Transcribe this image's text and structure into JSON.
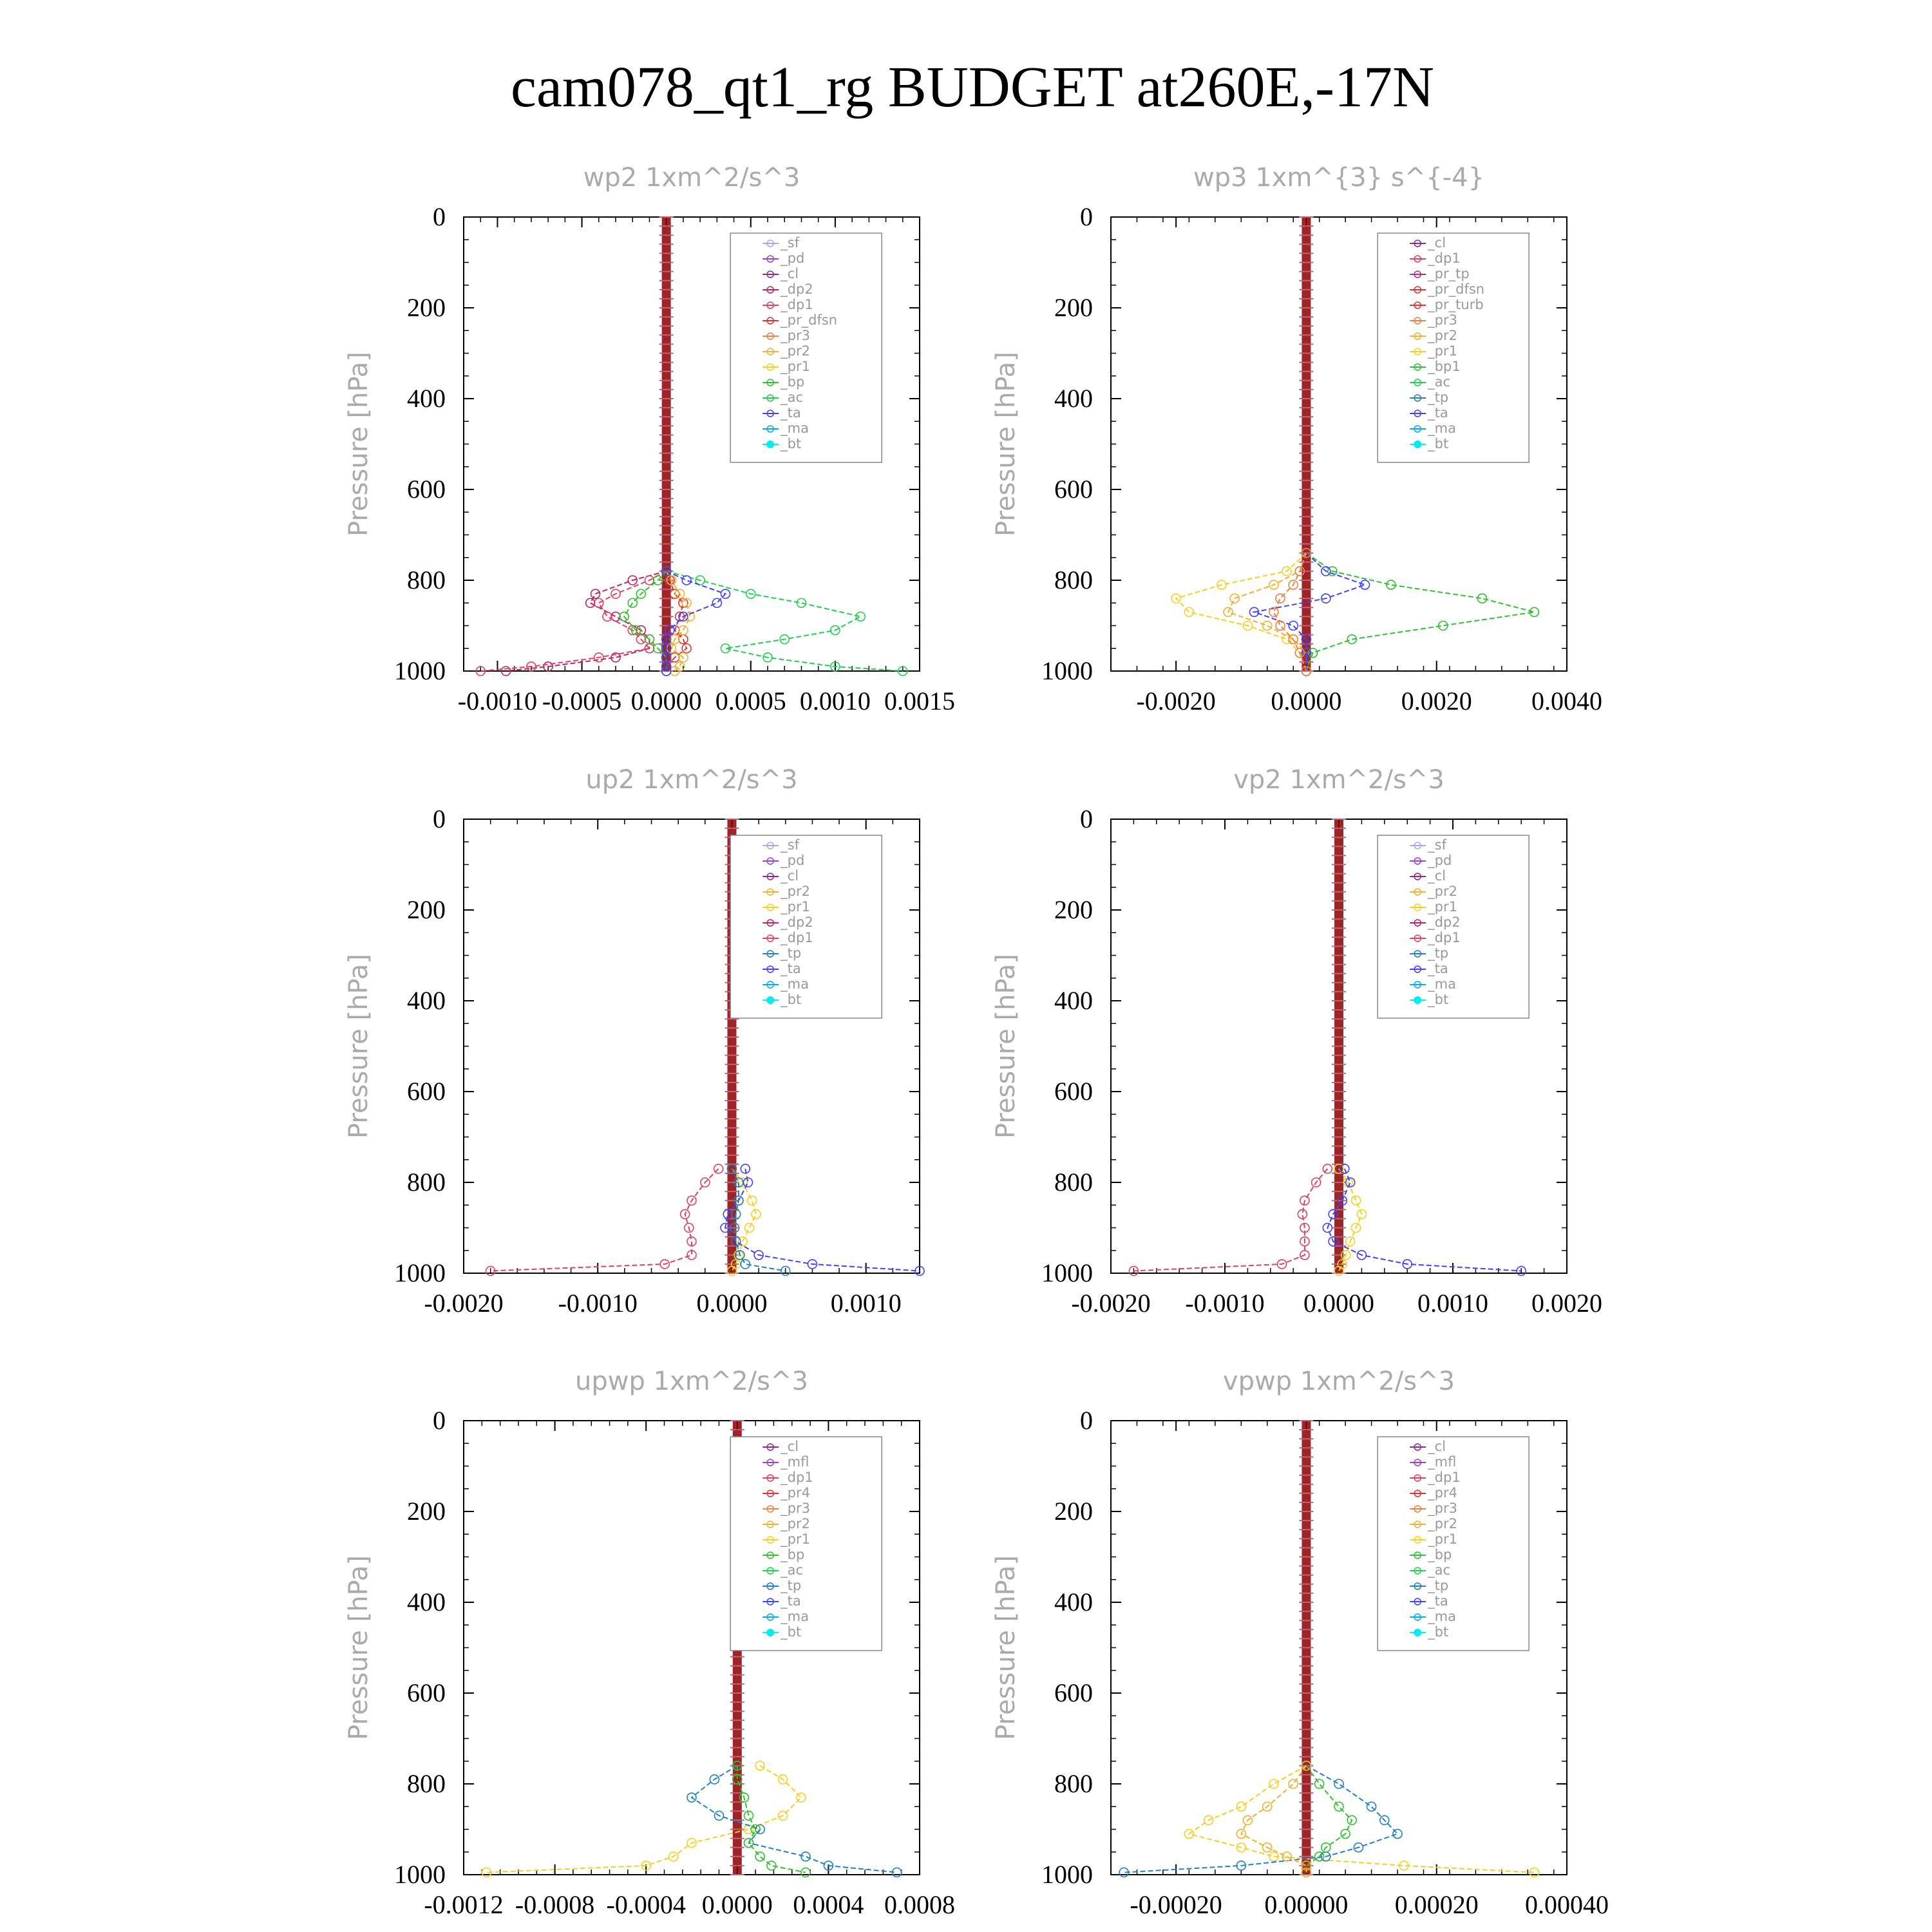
{
  "figure_title": "cam078_qt1_rg  BUDGET at260E,-17N",
  "colors": {
    "_sf": "#a8a8e8",
    "_pd": "#9b40d0",
    "_cl": "#8b2a8b",
    "_mfl": "#a040c0",
    "_dp2": "#c02060",
    "_dp1": "#e04060",
    "_pr_dfsn": "#e03030",
    "_pr_tp": "#b03080",
    "_pr_turb": "#e03030",
    "_pr4": "#e03030",
    "_pr3": "#f08040",
    "_pr2": "#f0b030",
    "_pr1": "#f5d020",
    "_bp1": "#30c030",
    "_bp": "#30c030",
    "_ac": "#20d050",
    "_tp": "#2080c0",
    "_ta": "#4040ff",
    "_ma": "#00aaee",
    "_bt": "#00eeee",
    "spine": "#8b0000"
  },
  "chart_data": [
    {
      "type": "line",
      "title": "wp2   1xm^2/s^3",
      "ylabel": "Pressure [hPa]",
      "ylim": [
        0,
        1000
      ],
      "xlim": [
        -0.0012,
        0.0015
      ],
      "xticks": [
        "-0.0010",
        "-0.0005",
        "0.0000",
        "0.0005",
        "0.0010",
        "0.0015"
      ],
      "yticks": [
        "0",
        "200",
        "400",
        "600",
        "800",
        "1000"
      ],
      "legend": [
        "_sf",
        "_pd",
        "_cl",
        "_dp2",
        "_dp1",
        "_pr_dfsn",
        "_pr3",
        "_pr2",
        "_pr1",
        "_bp",
        "_ac",
        "_ta",
        "_ma",
        "_bt"
      ],
      "pressure": [
        780,
        800,
        830,
        850,
        880,
        910,
        930,
        950,
        970,
        990,
        1000
      ],
      "series": [
        {
          "name": "_dp2",
          "values": [
            0,
            -0.0002,
            -0.00042,
            -0.00045,
            -0.0003,
            -0.00015,
            -0.0001,
            -0.0001,
            -0.0003,
            -0.0007,
            -0.00095
          ]
        },
        {
          "name": "_dp1",
          "values": [
            0,
            -0.0001,
            -0.0003,
            -0.0004,
            -0.00035,
            -0.0002,
            -0.00015,
            -0.0001,
            -0.0004,
            -0.0008,
            -0.0011
          ]
        },
        {
          "name": "_pr_dfsn",
          "values": [
            0,
            2e-05,
            5e-05,
            0.0001,
            8e-05,
            5e-05,
            0.0001,
            0.00012,
            5e-05,
            0,
            0
          ]
        },
        {
          "name": "_pr2",
          "values": [
            0,
            3e-05,
            8e-05,
            0.00012,
            0.00014,
            0.0001,
            5e-05,
            3e-05,
            0.0001,
            8e-05,
            5e-05
          ]
        },
        {
          "name": "_bp",
          "values": [
            0,
            -5e-05,
            -0.00015,
            -0.0002,
            -0.00025,
            -0.00018,
            -0.0001,
            -5e-05,
            0,
            0,
            0
          ]
        },
        {
          "name": "_ac",
          "values": [
            0,
            0.0002,
            0.0005,
            0.0008,
            0.00115,
            0.001,
            0.0007,
            0.00035,
            0.0006,
            0.001,
            0.0014
          ]
        },
        {
          "name": "_ta",
          "values": [
            0,
            0.00012,
            0.00035,
            0.0003,
            0.0001,
            2e-05,
            0,
            0,
            0,
            0,
            0
          ]
        }
      ]
    },
    {
      "type": "line",
      "title": "wp3   1xm^{3} s^{-4}",
      "ylabel": "Pressure [hPa]",
      "ylim": [
        0,
        1000
      ],
      "xlim": [
        -0.003,
        0.004
      ],
      "xticks": [
        "-0.0020",
        "0.0000",
        "0.0020",
        "0.0040"
      ],
      "yticks": [
        "0",
        "200",
        "400",
        "600",
        "800",
        "1000"
      ],
      "legend": [
        "_cl",
        "_dp1",
        "_pr_tp",
        "_pr_dfsn",
        "_pr_turb",
        "_pr3",
        "_pr2",
        "_pr1",
        "_bp1",
        "_ac",
        "_tp",
        "_ta",
        "_ma",
        "_bt"
      ],
      "pressure": [
        740,
        780,
        810,
        840,
        870,
        900,
        930,
        960,
        1000
      ],
      "series": [
        {
          "name": "_pr1",
          "values": [
            0,
            -0.0003,
            -0.0013,
            -0.002,
            -0.0018,
            -0.0009,
            -0.0003,
            -0.0001,
            0
          ]
        },
        {
          "name": "_pr2",
          "values": [
            0,
            -0.0001,
            -0.0005,
            -0.0011,
            -0.0012,
            -0.0006,
            -0.0002,
            0,
            0
          ]
        },
        {
          "name": "_bp1",
          "values": [
            0,
            0.0004,
            0.0013,
            0.0027,
            0.0035,
            0.0021,
            0.0007,
            0.0001,
            0
          ]
        },
        {
          "name": "_ta",
          "values": [
            0,
            0.0003,
            0.0009,
            0.0003,
            -0.0008,
            -0.0002,
            0,
            0,
            0
          ]
        },
        {
          "name": "_pr3",
          "values": [
            0,
            -0.0001,
            -0.0002,
            -0.0004,
            -0.0005,
            -0.0004,
            -0.0002,
            -0.0001,
            0
          ]
        }
      ]
    },
    {
      "type": "line",
      "title": "up2   1xm^2/s^3",
      "ylabel": "Pressure [hPa]",
      "ylim": [
        0,
        1000
      ],
      "xlim": [
        -0.002,
        0.0014
      ],
      "xticks": [
        "-0.0020",
        "-0.0010",
        "0.0000",
        "0.0010"
      ],
      "yticks": [
        "0",
        "200",
        "400",
        "600",
        "800",
        "1000"
      ],
      "legend": [
        "_sf",
        "_pd",
        "_cl",
        "_pr2",
        "_pr1",
        "_dp2",
        "_dp1",
        "_tp",
        "_ta",
        "_ma",
        "_bt"
      ],
      "pressure": [
        770,
        800,
        840,
        870,
        900,
        930,
        960,
        980,
        995
      ],
      "series": [
        {
          "name": "_dp1",
          "values": [
            -0.0001,
            -0.0002,
            -0.0003,
            -0.00035,
            -0.00032,
            -0.0003,
            -0.0003,
            -0.0005,
            -0.0018
          ]
        },
        {
          "name": "_pr1",
          "values": [
            0,
            8e-05,
            0.00015,
            0.00018,
            0.00013,
            8e-05,
            5e-05,
            3e-05,
            0
          ]
        },
        {
          "name": "_ta",
          "values": [
            0.0001,
            0.00012,
            5e-05,
            -3e-05,
            -5e-05,
            3e-05,
            0.0002,
            0.0006,
            0.0014
          ]
        },
        {
          "name": "_tp",
          "values": [
            0,
            5e-05,
            5e-05,
            3e-05,
            2e-05,
            3e-05,
            6e-05,
            0.0001,
            0.0004
          ]
        }
      ]
    },
    {
      "type": "line",
      "title": "vp2   1xm^2/s^3",
      "ylabel": "Pressure [hPa]",
      "ylim": [
        0,
        1000
      ],
      "xlim": [
        -0.002,
        0.002
      ],
      "xticks": [
        "-0.0020",
        "-0.0010",
        "0.0000",
        "0.0010",
        "0.0020"
      ],
      "yticks": [
        "0",
        "200",
        "400",
        "600",
        "800",
        "1000"
      ],
      "legend": [
        "_sf",
        "_pd",
        "_cl",
        "_pr2",
        "_pr1",
        "_dp2",
        "_dp1",
        "_tp",
        "_ta",
        "_ma",
        "_bt"
      ],
      "pressure": [
        770,
        800,
        840,
        870,
        900,
        930,
        960,
        980,
        995
      ],
      "series": [
        {
          "name": "_dp1",
          "values": [
            -0.0001,
            -0.0002,
            -0.0003,
            -0.00032,
            -0.0003,
            -0.0003,
            -0.0003,
            -0.0005,
            -0.0018
          ]
        },
        {
          "name": "_pr1",
          "values": [
            0,
            8e-05,
            0.00015,
            0.0002,
            0.00015,
            0.0001,
            6e-05,
            3e-05,
            0
          ]
        },
        {
          "name": "_ta",
          "values": [
            5e-05,
            0.0001,
            3e-05,
            -5e-05,
            -0.0001,
            -5e-05,
            0.0002,
            0.0006,
            0.0016
          ]
        }
      ]
    },
    {
      "type": "line",
      "title": "upwp   1xm^2/s^3",
      "ylabel": "Pressure [hPa]",
      "ylim": [
        0,
        1000
      ],
      "xlim": [
        -0.0012,
        0.0008
      ],
      "xticks": [
        "-0.0012",
        "-0.0008",
        "-0.0004",
        "0.0000",
        "0.0004",
        "0.0008"
      ],
      "yticks": [
        "0",
        "200",
        "400",
        "600",
        "800",
        "1000"
      ],
      "legend": [
        "_cl",
        "_mfl",
        "_dp1",
        "_pr4",
        "_pr3",
        "_pr2",
        "_pr1",
        "_bp",
        "_ac",
        "_tp",
        "_ta",
        "_ma",
        "_bt"
      ],
      "pressure": [
        760,
        790,
        830,
        870,
        900,
        930,
        960,
        980,
        995
      ],
      "series": [
        {
          "name": "_pr1",
          "values": [
            0.0001,
            0.0002,
            0.00028,
            0.0002,
            5e-05,
            -0.0002,
            -0.00028,
            -0.0004,
            -0.0011
          ]
        },
        {
          "name": "_tp",
          "values": [
            0,
            -0.0001,
            -0.0002,
            -8e-05,
            0.0001,
            5e-05,
            0.0003,
            0.0004,
            0.0007
          ]
        },
        {
          "name": "_bp",
          "values": [
            0,
            0,
            3e-05,
            5e-05,
            8e-05,
            5e-05,
            0.0001,
            0.00015,
            0.0003
          ]
        }
      ]
    },
    {
      "type": "line",
      "title": "vpwp   1xm^2/s^3",
      "ylabel": "Pressure [hPa]",
      "ylim": [
        0,
        1000
      ],
      "xlim": [
        -0.0003,
        0.0004
      ],
      "xticks": [
        "-0.00020",
        "0.00000",
        "0.00020",
        "0.00040"
      ],
      "yticks": [
        "0",
        "200",
        "400",
        "600",
        "800",
        "1000"
      ],
      "legend": [
        "_cl",
        "_mfl",
        "_dp1",
        "_pr4",
        "_pr3",
        "_pr2",
        "_pr1",
        "_bp",
        "_ac",
        "_tp",
        "_ta",
        "_ma",
        "_bt"
      ],
      "pressure": [
        760,
        800,
        850,
        880,
        910,
        940,
        960,
        980,
        995
      ],
      "series": [
        {
          "name": "_pr1",
          "values": [
            0,
            -5e-05,
            -0.0001,
            -0.00015,
            -0.00018,
            -0.0001,
            -5e-05,
            0.00015,
            0.00035
          ]
        },
        {
          "name": "_tp",
          "values": [
            0,
            5e-05,
            0.0001,
            0.00012,
            0.00014,
            8e-05,
            3e-05,
            -0.0001,
            -0.00028
          ]
        },
        {
          "name": "_bp",
          "values": [
            0,
            2e-05,
            5e-05,
            7e-05,
            6e-05,
            3e-05,
            2e-05,
            0,
            0
          ]
        },
        {
          "name": "_pr2",
          "values": [
            0,
            -2e-05,
            -6e-05,
            -9e-05,
            -0.0001,
            -6e-05,
            -3e-05,
            0,
            0
          ]
        }
      ]
    }
  ]
}
